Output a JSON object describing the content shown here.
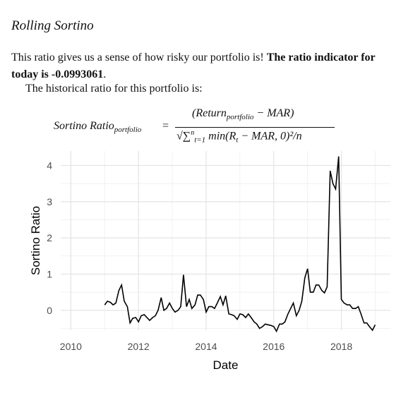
{
  "section": {
    "heading": "Rolling Sortino",
    "intro": "This ratio gives us a sense of how risky our portfolio is! ",
    "bold_text": "The ratio indicator for today is -0.0993061",
    "bold_end": ".",
    "history_text": "The historical ratio for this portfolio is:"
  },
  "formula": {
    "lhs": "Sortino Ratio",
    "lhs_sub": "portfolio",
    "equals": "=",
    "numerator": "(Return",
    "numerator_sub": "portfolio",
    "numerator_end": " − MAR)",
    "denominator": "√∑",
    "denominator_sup": "n",
    "denominator_sub": "t=1",
    "denominator_body": " min(R",
    "denominator_body_sub": "t",
    "denominator_end": " − MAR, 0)²/n"
  },
  "chart_data": {
    "type": "line",
    "xlabel": "Date",
    "ylabel": "Sortino Ratio",
    "xlim": [
      2009.7,
      2019.45
    ],
    "ylim": [
      -0.55,
      4.4
    ],
    "x_ticks": [
      2010,
      2012,
      2014,
      2016,
      2018
    ],
    "y_ticks": [
      0,
      1,
      2,
      3,
      4
    ],
    "grid": true,
    "line_color": "#000000",
    "series": [
      {
        "x": [
          2011.0,
          2011.08,
          2011.17,
          2011.25,
          2011.33,
          2011.42,
          2011.5,
          2011.58,
          2011.67,
          2011.75,
          2011.83,
          2011.92,
          2012.0,
          2012.08,
          2012.17,
          2012.25,
          2012.33,
          2012.42,
          2012.5,
          2012.58,
          2012.67,
          2012.75,
          2012.83,
          2012.92,
          2013.0,
          2013.08,
          2013.17,
          2013.25,
          2013.33,
          2013.42,
          2013.5,
          2013.58,
          2013.67,
          2013.75,
          2013.83,
          2013.92,
          2014.0,
          2014.08,
          2014.17,
          2014.25,
          2014.33,
          2014.42,
          2014.5,
          2014.58,
          2014.67,
          2014.75,
          2014.83,
          2014.92,
          2015.0,
          2015.08,
          2015.17,
          2015.25,
          2015.33,
          2015.42,
          2015.5,
          2015.58,
          2015.67,
          2015.75,
          2015.83,
          2015.92,
          2016.0,
          2016.08,
          2016.17,
          2016.25,
          2016.33,
          2016.42,
          2016.5,
          2016.58,
          2016.67,
          2016.75,
          2016.83,
          2016.92,
          2017.0,
          2017.08,
          2017.17,
          2017.25,
          2017.33,
          2017.42,
          2017.5,
          2017.58,
          2017.67,
          2017.75,
          2017.83,
          2017.92,
          2018.0,
          2018.08,
          2018.17,
          2018.25,
          2018.33,
          2018.42,
          2018.5,
          2018.58,
          2018.67,
          2018.75,
          2018.83,
          2018.92,
          2019.0
        ],
        "y": [
          0.15,
          0.25,
          0.22,
          0.15,
          0.2,
          0.55,
          0.7,
          0.25,
          0.1,
          -0.35,
          -0.22,
          -0.2,
          -0.32,
          -0.15,
          -0.12,
          -0.2,
          -0.28,
          -0.2,
          -0.15,
          0.0,
          0.35,
          0.0,
          0.05,
          0.2,
          0.05,
          -0.05,
          0.0,
          0.1,
          0.98,
          0.1,
          0.3,
          0.05,
          0.15,
          0.42,
          0.42,
          0.3,
          -0.05,
          0.1,
          0.1,
          0.05,
          0.2,
          0.38,
          0.15,
          0.4,
          -0.1,
          -0.12,
          -0.15,
          -0.25,
          -0.1,
          -0.12,
          -0.2,
          -0.1,
          -0.2,
          -0.32,
          -0.38,
          -0.5,
          -0.45,
          -0.38,
          -0.4,
          -0.42,
          -0.45,
          -0.58,
          -0.38,
          -0.38,
          -0.32,
          -0.1,
          0.05,
          0.2,
          -0.15,
          0.0,
          0.25,
          0.9,
          1.15,
          0.5,
          0.5,
          0.7,
          0.7,
          0.55,
          0.48,
          0.65,
          3.85,
          3.5,
          3.35,
          4.25,
          0.3,
          0.2,
          0.15,
          0.15,
          0.05,
          0.05,
          0.1,
          -0.1,
          -0.35,
          -0.35,
          -0.45,
          -0.55,
          -0.4
        ]
      }
    ]
  }
}
